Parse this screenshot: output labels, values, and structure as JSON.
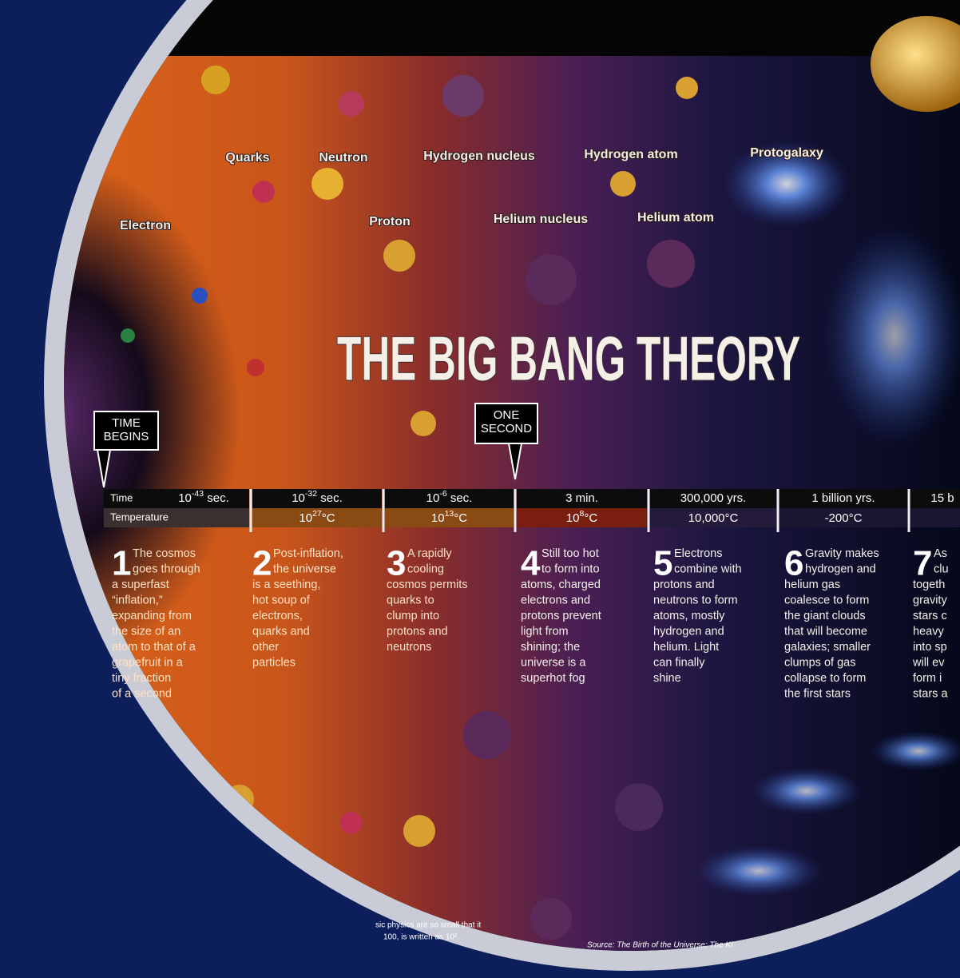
{
  "particle_labels": [
    "Quarks",
    "Neutron",
    "Hydrogen nucleus",
    "Hydrogen atom",
    "Protogalaxy",
    "Electron",
    "Proton",
    "Helium nucleus",
    "Helium atom"
  ],
  "title": "THE BIG BANG THEORY",
  "markers": [
    [
      "TIME",
      "BEGINS"
    ],
    [
      "ONE",
      "SECOND"
    ]
  ],
  "timeline": {
    "row_labels": [
      "Time",
      "Temperature"
    ],
    "columns": [
      {
        "time": {
          "text": "10",
          "sup": "-43",
          "after": " sec."
        }
      },
      {
        "time": {
          "text": "10",
          "sup": "-32",
          "after": " sec."
        },
        "temperature": {
          "text": "10",
          "sup": "27",
          "after": "°C"
        }
      },
      {
        "time": {
          "text": "10",
          "sup": "-6",
          "after": " sec."
        },
        "temperature": {
          "text": "10",
          "sup": "13",
          "after": "°C"
        }
      },
      {
        "time": {
          "text": "3 min."
        },
        "temperature": {
          "text": "10",
          "sup": "8",
          "after": "°C"
        }
      },
      {
        "time": {
          "text": "300,000 yrs."
        },
        "temperature": {
          "text": "10,000°C"
        }
      },
      {
        "time": {
          "text": "1 billion yrs."
        },
        "temperature": {
          "text": "-200°C"
        }
      },
      {
        "time": {
          "text": "15 b"
        }
      }
    ]
  },
  "steps": [
    {
      "number": "1",
      "lines": [
        "The cosmos",
        "goes through",
        "a superfast",
        "“inflation,”",
        "expanding from",
        "the size of an",
        "atom to that of a",
        "grapefruit in a",
        "tiny fraction",
        "of a second"
      ]
    },
    {
      "number": "2",
      "lines": [
        "Post-inflation,",
        "the universe",
        "is a seething,",
        "hot soup of",
        "electrons,",
        "quarks and",
        "other",
        "particles"
      ]
    },
    {
      "number": "3",
      "lines": [
        "A rapidly",
        "cooling",
        "cosmos permits",
        "quarks to",
        "clump into",
        "protons and",
        "neutrons"
      ]
    },
    {
      "number": "4",
      "lines": [
        "Still too hot",
        "to form into",
        "atoms, charged",
        "electrons and",
        "protons prevent",
        "light from",
        "shining; the",
        "universe is a",
        "superhot fog"
      ]
    },
    {
      "number": "5",
      "lines": [
        "Electrons",
        "combine with",
        "protons and",
        "neutrons to form",
        "atoms, mostly",
        "hydrogen and",
        "helium. Light",
        "can finally",
        "shine"
      ]
    },
    {
      "number": "6",
      "lines": [
        "Gravity makes",
        "hydrogen and",
        "helium gas",
        "coalesce to form",
        "the giant clouds",
        "that will become",
        "galaxies; smaller",
        "clumps of gas",
        "collapse to form",
        "the first stars"
      ]
    },
    {
      "number": "7",
      "lines": [
        "As",
        "clu",
        "togeth",
        "gravity",
        "stars c",
        "heavy",
        "into sp",
        "will ev",
        "form i",
        "stars a"
      ]
    }
  ],
  "footnote": [
    "sic physics are so small that it",
    "100, is written as 10²."
  ],
  "source": "Source: The Birth of the Universe; The Ki"
}
